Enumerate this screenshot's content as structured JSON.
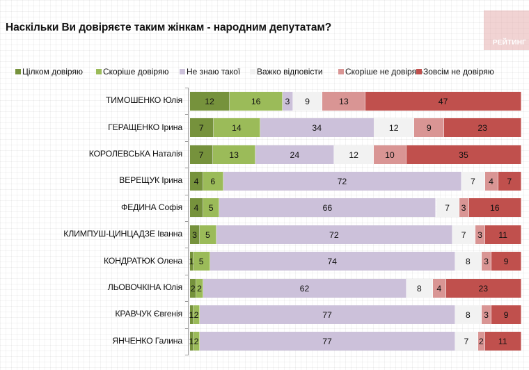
{
  "header": {
    "title": "Наскільки Ви довіряєте таким жінкам - народним депутатам?",
    "logo_text": "РЕЙТИНГ"
  },
  "chart_data": {
    "type": "bar",
    "orientation": "horizontal",
    "stacked": true,
    "title": "Наскільки Ви довіряєте таким жінкам - народним депутатам?",
    "xlabel": "",
    "ylabel": "",
    "legend_position": "top",
    "grid": false,
    "categories": [
      "ТИМОШЕНКО Юлія",
      "ГЕРАЩЕНКО Ірина",
      "КОРОЛЕВСЬКА Наталія",
      "ВЕРЕЩУК Ірина",
      "ФЕДИНА Софія",
      "КЛИМПУШ-ЦИНЦАДЗЕ Іванна",
      "КОНДРАТЮК Олена",
      "ЛЬОВОЧКІНА Юлія",
      "КРАВЧУК Євгенія",
      "ЯНЧЕНКО Галина"
    ],
    "series": [
      {
        "name": "Цілком довіряю",
        "color": "#76923c",
        "values": [
          12,
          7,
          7,
          4,
          4,
          3,
          1,
          2,
          1,
          1
        ]
      },
      {
        "name": "Скоріше довіряю",
        "color": "#9bbb59",
        "values": [
          16,
          14,
          13,
          6,
          5,
          5,
          5,
          2,
          2,
          2
        ]
      },
      {
        "name": "Не знаю такої",
        "color": "#ccc1da",
        "values": [
          3,
          34,
          24,
          72,
          66,
          72,
          74,
          62,
          77,
          77
        ]
      },
      {
        "name": "Важко відповісти",
        "color": "#f2f2f2",
        "values": [
          9,
          12,
          12,
          7,
          7,
          7,
          8,
          8,
          8,
          7
        ]
      },
      {
        "name": "Скоріше не довіряю",
        "color": "#d99594",
        "values": [
          13,
          9,
          10,
          4,
          3,
          3,
          3,
          4,
          3,
          2
        ]
      },
      {
        "name": "Зовсім не довіряю",
        "color": "#c0504d",
        "values": [
          47,
          23,
          35,
          7,
          16,
          11,
          9,
          23,
          9,
          11
        ]
      }
    ]
  }
}
